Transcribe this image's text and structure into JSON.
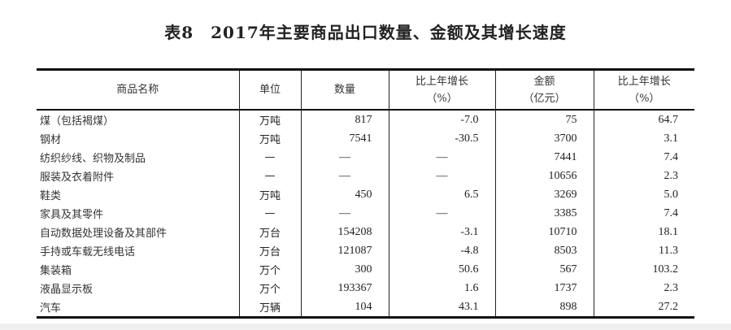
{
  "title": "表8　2017年主要商品出口数量、金额及其增长速度",
  "headers": [
    {
      "line1": "商品名称",
      "line2": ""
    },
    {
      "line1": "单位",
      "line2": ""
    },
    {
      "line1": "数量",
      "line2": ""
    },
    {
      "line1": "比上年增长",
      "line2": "（%）"
    },
    {
      "line1": "金额",
      "line2": "（亿元）"
    },
    {
      "line1": "比上年增长",
      "line2": "（%）"
    }
  ],
  "rows": [
    [
      "煤（包括褐煤）",
      "万吨",
      "817",
      "-7.0",
      "75",
      "64.7"
    ],
    [
      "钢材",
      "万吨",
      "7541",
      "-30.5",
      "3700",
      "3.1"
    ],
    [
      "纺织纱线、织物及制品",
      "—",
      "—",
      "—",
      "7441",
      "7.4"
    ],
    [
      "服装及衣着附件",
      "—",
      "—",
      "—",
      "10656",
      "2.3"
    ],
    [
      "鞋类",
      "万吨",
      "450",
      "6.5",
      "3269",
      "5.0"
    ],
    [
      "家具及其零件",
      "—",
      "—",
      "—",
      "3385",
      "7.4"
    ],
    [
      "自动数据处理设备及其部件",
      "万台",
      "154208",
      "-3.1",
      "10710",
      "18.1"
    ],
    [
      "手持或车载无线电话",
      "万台",
      "121087",
      "-4.8",
      "8503",
      "11.3"
    ],
    [
      "集装箱",
      "万个",
      "300",
      "50.6",
      "567",
      "103.2"
    ],
    [
      "液晶显示板",
      "万个",
      "193367",
      "1.6",
      "1737",
      "2.3"
    ],
    [
      "汽车",
      "万辆",
      "104",
      "43.1",
      "898",
      "27.2"
    ]
  ]
}
